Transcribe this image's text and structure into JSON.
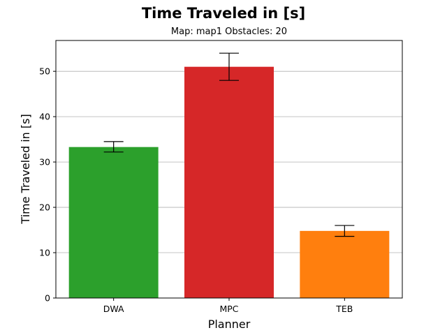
{
  "chart_data": {
    "type": "bar",
    "title": "Time Traveled in [s]",
    "subtitle": "Map: map1 Obstacles: 20",
    "xlabel": "Planner",
    "ylabel": "Time Traveled in [s]",
    "categories": [
      "DWA",
      "MPC",
      "TEB"
    ],
    "values": [
      33.3,
      51.0,
      14.8
    ],
    "error_low": [
      32.2,
      48.0,
      13.6
    ],
    "error_high": [
      34.5,
      54.0,
      16.0
    ],
    "colors": [
      "#2ca02c",
      "#d62728",
      "#ff7f0e"
    ],
    "ylim": [
      0,
      56.8
    ],
    "yticks": [
      0,
      10,
      20,
      30,
      40,
      50
    ],
    "grid": "horizontal",
    "legend": "none"
  }
}
